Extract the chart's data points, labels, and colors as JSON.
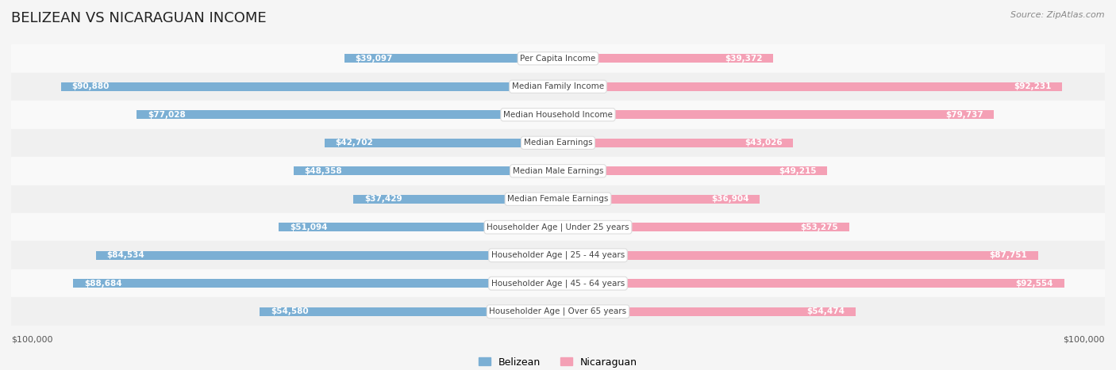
{
  "title": "BELIZEAN VS NICARAGUAN INCOME",
  "source": "Source: ZipAtlas.com",
  "categories": [
    "Per Capita Income",
    "Median Family Income",
    "Median Household Income",
    "Median Earnings",
    "Median Male Earnings",
    "Median Female Earnings",
    "Householder Age | Under 25 years",
    "Householder Age | 25 - 44 years",
    "Householder Age | 45 - 64 years",
    "Householder Age | Over 65 years"
  ],
  "belizean_values": [
    39097,
    90880,
    77028,
    42702,
    48358,
    37429,
    51094,
    84534,
    88684,
    54580
  ],
  "nicaraguan_values": [
    39372,
    92231,
    79737,
    43026,
    49215,
    36904,
    53275,
    87751,
    92554,
    54474
  ],
  "belizean_labels": [
    "$39,097",
    "$90,880",
    "$77,028",
    "$42,702",
    "$48,358",
    "$37,429",
    "$51,094",
    "$84,534",
    "$88,684",
    "$54,580"
  ],
  "nicaraguan_labels": [
    "$39,372",
    "$92,231",
    "$79,737",
    "$43,026",
    "$49,215",
    "$36,904",
    "$53,275",
    "$87,751",
    "$92,554",
    "$54,474"
  ],
  "max_value": 100000,
  "belizean_color": "#7bafd4",
  "belizean_color_dark": "#5b9ec9",
  "nicaraguan_color": "#f4a0b5",
  "nicaraguan_color_dark": "#ef7096",
  "bg_color": "#f5f5f5",
  "row_bg_light": "#f9f9f9",
  "row_bg_dark": "#f0f0f0",
  "label_bg": "#ffffff",
  "xlabel_left": "$100,000",
  "xlabel_right": "$100,000"
}
